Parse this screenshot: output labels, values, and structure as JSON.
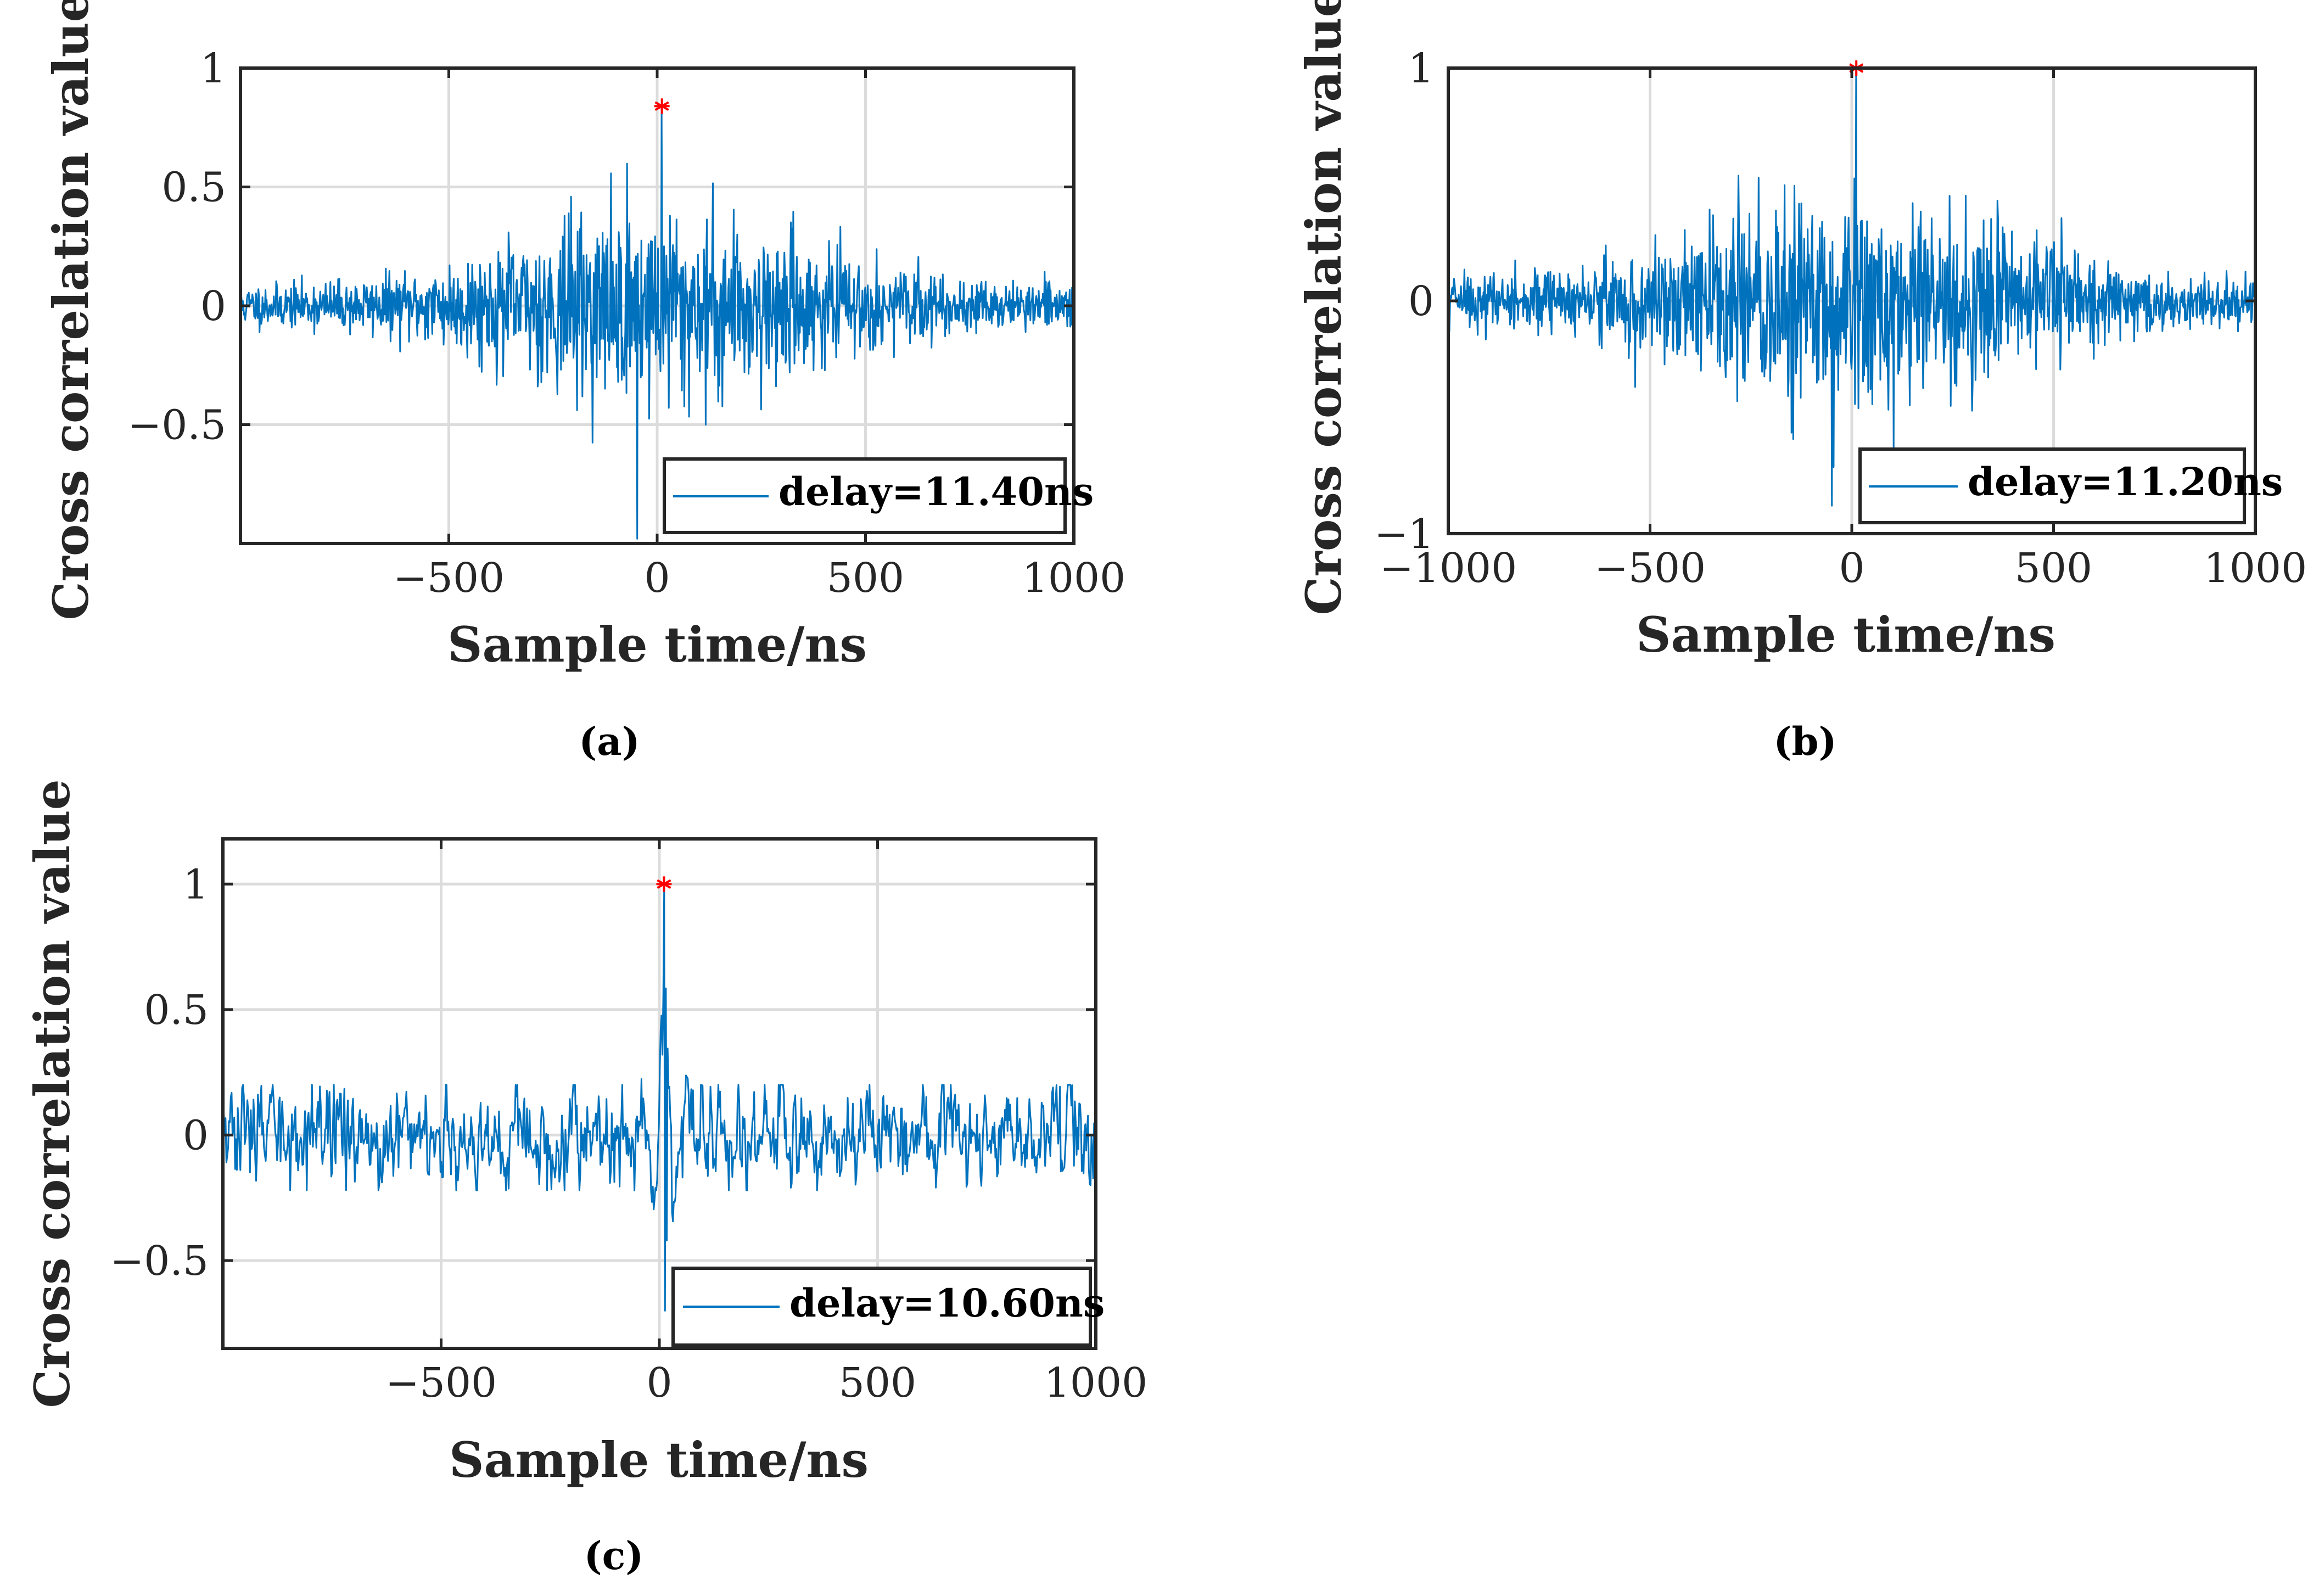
{
  "figure": {
    "colors": {
      "signal": "#0072BD",
      "marker": "#FF0000",
      "grid": "#DCDCDC",
      "axis": "#262626"
    }
  },
  "chart_data": [
    {
      "panel": "a",
      "caption": "(a)",
      "type": "line",
      "xlabel": "Sample time/ns",
      "ylabel": "Cross correlation value",
      "xlim": [
        -1000,
        1000
      ],
      "ylim": [
        -1,
        1
      ],
      "xticks": [
        -500,
        0,
        500,
        1000
      ],
      "xtick_labels": [
        "−500",
        "0",
        "500",
        "1000"
      ],
      "yticks": [
        -0.5,
        0,
        0.5,
        1
      ],
      "ytick_labels": [
        "−0.5",
        "0",
        "0.5",
        "1"
      ],
      "grid": true,
      "legend": "bottom-right",
      "series": [
        {
          "name": "delay=11.40ns",
          "kind": "noisy correlation",
          "x_range": [
            -1000,
            1000
          ],
          "sample_count": 1400,
          "peak_x": 11.4,
          "peak_y": 0.84,
          "envelope_center": 0,
          "envelope_width": 320,
          "envelope_peak": 0.5,
          "envelope_floor": 0.1,
          "min_value": -0.98
        }
      ],
      "peak_marker": {
        "x": 11.4,
        "y": 0.84,
        "symbol": "*"
      }
    },
    {
      "panel": "b",
      "caption": "(b)",
      "type": "line",
      "xlabel": "Sample time/ns",
      "ylabel": "Cross correlation value",
      "xlim": [
        -1000,
        1000
      ],
      "ylim": [
        -1,
        1
      ],
      "xticks": [
        -1000,
        -500,
        0,
        500,
        1000
      ],
      "xtick_labels": [
        "−1000",
        "−500",
        "0",
        "500",
        "1000"
      ],
      "yticks": [
        -1,
        0,
        1
      ],
      "ytick_labels": [
        "−1",
        "0",
        "1"
      ],
      "grid": true,
      "legend": "bottom-right",
      "series": [
        {
          "name": "delay=11.20ns",
          "kind": "noisy correlation",
          "x_range": [
            -1000,
            1000
          ],
          "sample_count": 1400,
          "peak_x": 11.2,
          "peak_y": 1.0,
          "envelope_center": 0,
          "envelope_width": 340,
          "envelope_peak": 0.58,
          "envelope_floor": 0.12,
          "min_value": -0.88
        }
      ],
      "peak_marker": {
        "x": 11.2,
        "y": 1.0,
        "symbol": "*"
      }
    },
    {
      "panel": "c",
      "caption": "(c)",
      "type": "line",
      "xlabel": "Sample time/ns",
      "ylabel": "Cross correlation value",
      "xlim": [
        -1000,
        1000
      ],
      "ylim": [
        -0.85,
        1.18
      ],
      "xticks": [
        -500,
        0,
        500,
        1000
      ],
      "xtick_labels": [
        "−500",
        "0",
        "500",
        "1000"
      ],
      "yticks": [
        -0.5,
        0,
        0.5,
        1
      ],
      "ytick_labels": [
        "−0.5",
        "0",
        "0.5",
        "1"
      ],
      "grid": true,
      "legend": "bottom-right",
      "series": [
        {
          "name": "delay=10.60ns",
          "kind": "sharp correlation",
          "x_range": [
            -1000,
            1000
          ],
          "sample_count": 1000,
          "peak_x": 10.6,
          "peak_y": 1.0,
          "baseline_amplitude": 0.12,
          "pulse_width": 22,
          "min_value": -0.7
        }
      ],
      "peak_marker": {
        "x": 10.6,
        "y": 1.0,
        "symbol": "*"
      }
    }
  ]
}
